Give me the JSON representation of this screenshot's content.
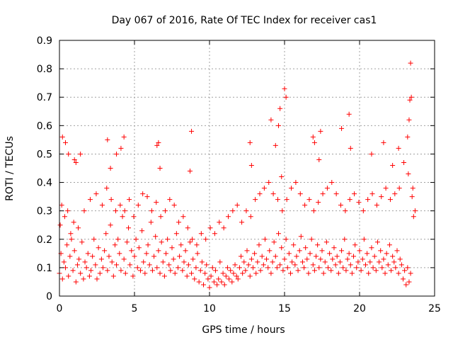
{
  "chart_data": {
    "type": "scatter",
    "title": "Day 067 of 2016, Rate Of TEC Index for receiver cas1",
    "xlabel": "GPS time / hours",
    "ylabel": "ROTI / TECUs",
    "xlim": [
      0,
      25
    ],
    "ylim": [
      0,
      0.9
    ],
    "xticks": [
      0,
      5,
      10,
      15,
      20,
      25
    ],
    "yticks": [
      0,
      0.1,
      0.2,
      0.3,
      0.4,
      0.5,
      0.6,
      0.7,
      0.8,
      0.9
    ],
    "xtick_labels": [
      "0",
      "5",
      "10",
      "15",
      "20",
      "25"
    ],
    "ytick_labels": [
      "0",
      "0.1",
      "0.2",
      "0.3",
      "0.4",
      "0.5",
      "0.6",
      "0.7",
      "0.8",
      "0.9"
    ],
    "grid": true,
    "marker": "+",
    "color": "#ff0000",
    "series": [
      {
        "name": "ROTI",
        "x": [
          0.0,
          0.1,
          0.2,
          0.3,
          0.4,
          0.5,
          0.6,
          0.7,
          0.8,
          0.9,
          1.0,
          1.1,
          1.2,
          1.3,
          1.4,
          1.5,
          1.6,
          1.7,
          1.8,
          1.9,
          2.0,
          2.1,
          2.2,
          2.3,
          2.4,
          2.5,
          2.6,
          2.7,
          2.8,
          2.9,
          3.0,
          3.1,
          3.2,
          3.3,
          3.4,
          3.5,
          3.6,
          3.7,
          3.8,
          3.9,
          4.0,
          4.1,
          4.2,
          4.3,
          4.4,
          4.5,
          4.6,
          4.7,
          4.8,
          4.9,
          5.0,
          5.1,
          5.2,
          5.3,
          5.4,
          5.5,
          5.6,
          5.7,
          5.8,
          5.9,
          6.0,
          6.1,
          6.2,
          6.3,
          6.4,
          6.5,
          6.6,
          6.7,
          6.8,
          6.9,
          7.0,
          7.1,
          7.2,
          7.3,
          7.4,
          7.5,
          7.6,
          7.7,
          7.8,
          7.9,
          8.0,
          8.1,
          8.2,
          8.3,
          8.4,
          8.5,
          8.6,
          8.7,
          8.8,
          8.9,
          9.0,
          9.1,
          9.2,
          9.3,
          9.4,
          9.5,
          9.6,
          9.7,
          9.8,
          9.9,
          10.0,
          10.1,
          10.2,
          10.3,
          10.4,
          10.5,
          10.6,
          10.7,
          10.8,
          10.9,
          11.0,
          11.1,
          11.2,
          11.3,
          11.4,
          11.5,
          11.6,
          11.7,
          11.8,
          11.9,
          12.0,
          12.1,
          12.2,
          12.3,
          12.4,
          12.5,
          12.6,
          12.7,
          12.8,
          12.9,
          13.0,
          13.1,
          13.2,
          13.3,
          13.4,
          13.5,
          13.6,
          13.7,
          13.8,
          13.9,
          14.0,
          14.1,
          14.2,
          14.3,
          14.4,
          14.5,
          14.6,
          14.7,
          14.8,
          14.9,
          15.0,
          15.1,
          15.2,
          15.3,
          15.4,
          15.5,
          15.6,
          15.7,
          15.8,
          15.9,
          16.0,
          16.1,
          16.2,
          16.3,
          16.4,
          16.5,
          16.6,
          16.7,
          16.8,
          16.9,
          17.0,
          17.1,
          17.2,
          17.3,
          17.4,
          17.5,
          17.6,
          17.7,
          17.8,
          17.9,
          18.0,
          18.1,
          18.2,
          18.3,
          18.4,
          18.5,
          18.6,
          18.7,
          18.8,
          18.9,
          19.0,
          19.1,
          19.2,
          19.3,
          19.4,
          19.5,
          19.6,
          19.7,
          19.8,
          19.9,
          20.0,
          20.1,
          20.2,
          20.3,
          20.4,
          20.5,
          20.6,
          20.7,
          20.8,
          20.9,
          21.0,
          21.1,
          21.2,
          21.3,
          21.4,
          21.5,
          21.6,
          21.7,
          21.8,
          21.9,
          22.0,
          22.1,
          22.2,
          22.3,
          22.4,
          22.5,
          22.6,
          22.7,
          22.8,
          22.9,
          23.0,
          23.1,
          23.2,
          23.3,
          23.4,
          23.5,
          23.6,
          23.7,
          0.05,
          0.15,
          0.35,
          0.55,
          0.75,
          0.95,
          1.25,
          1.65,
          2.05,
          2.45,
          2.85,
          3.15,
          3.45,
          3.75,
          4.05,
          4.35,
          4.65,
          4.95,
          5.25,
          5.55,
          5.85,
          6.15,
          6.45,
          6.75,
          7.05,
          7.35,
          7.65,
          7.95,
          8.25,
          8.55,
          8.85,
          9.15,
          9.45,
          9.75,
          10.05,
          10.35,
          10.65,
          10.95,
          11.25,
          11.55,
          11.85,
          12.15,
          12.45,
          12.75,
          13.05,
          13.35,
          13.65,
          13.95,
          14.25,
          14.55,
          14.85,
          15.15,
          15.45,
          15.75,
          16.05,
          16.35,
          16.65,
          16.95,
          17.25,
          17.55,
          17.85,
          18.15,
          18.45,
          18.75,
          19.05,
          19.35,
          19.65,
          19.95,
          20.25,
          20.55,
          20.85,
          21.15,
          21.45,
          21.75,
          22.05,
          22.35,
          22.65,
          22.95,
          23.25,
          23.55,
          0.2,
          0.4,
          0.6,
          1.0,
          1.1,
          1.4,
          3.2,
          3.4,
          3.8,
          4.1,
          4.3,
          6.5,
          6.6,
          6.7,
          8.7,
          8.8,
          12.7,
          12.8,
          14.1,
          14.4,
          14.6,
          14.7,
          14.8,
          15.0,
          15.1,
          16.9,
          17.0,
          17.3,
          17.4,
          18.8,
          19.3,
          19.4,
          20.8,
          21.6,
          22.2,
          22.6,
          23.2,
          23.3,
          23.35,
          23.4,
          23.45
        ],
        "y": [
          0.08,
          0.15,
          0.06,
          0.12,
          0.1,
          0.18,
          0.07,
          0.14,
          0.2,
          0.09,
          0.16,
          0.05,
          0.11,
          0.13,
          0.08,
          0.19,
          0.06,
          0.12,
          0.1,
          0.15,
          0.07,
          0.09,
          0.14,
          0.2,
          0.11,
          0.06,
          0.17,
          0.08,
          0.13,
          0.1,
          0.16,
          0.22,
          0.09,
          0.14,
          0.25,
          0.12,
          0.07,
          0.18,
          0.11,
          0.2,
          0.15,
          0.09,
          0.28,
          0.13,
          0.08,
          0.19,
          0.24,
          0.11,
          0.16,
          0.07,
          0.14,
          0.2,
          0.1,
          0.17,
          0.09,
          0.23,
          0.12,
          0.08,
          0.15,
          0.18,
          0.11,
          0.26,
          0.09,
          0.14,
          0.21,
          0.1,
          0.16,
          0.08,
          0.19,
          0.12,
          0.07,
          0.15,
          0.2,
          0.11,
          0.09,
          0.17,
          0.13,
          0.08,
          0.22,
          0.1,
          0.14,
          0.18,
          0.09,
          0.12,
          0.16,
          0.07,
          0.11,
          0.19,
          0.08,
          0.13,
          0.06,
          0.1,
          0.15,
          0.05,
          0.09,
          0.12,
          0.04,
          0.08,
          0.11,
          0.06,
          0.03,
          0.07,
          0.1,
          0.05,
          0.09,
          0.04,
          0.06,
          0.12,
          0.05,
          0.08,
          0.04,
          0.07,
          0.1,
          0.06,
          0.09,
          0.05,
          0.08,
          0.11,
          0.07,
          0.06,
          0.1,
          0.14,
          0.08,
          0.12,
          0.09,
          0.16,
          0.11,
          0.07,
          0.13,
          0.1,
          0.15,
          0.08,
          0.12,
          0.18,
          0.09,
          0.14,
          0.11,
          0.2,
          0.13,
          0.1,
          0.16,
          0.08,
          0.12,
          0.19,
          0.14,
          0.1,
          0.22,
          0.11,
          0.17,
          0.09,
          0.13,
          0.2,
          0.1,
          0.15,
          0.08,
          0.12,
          0.18,
          0.11,
          0.14,
          0.09,
          0.16,
          0.21,
          0.12,
          0.1,
          0.17,
          0.13,
          0.08,
          0.15,
          0.2,
          0.11,
          0.09,
          0.14,
          0.18,
          0.1,
          0.13,
          0.16,
          0.08,
          0.12,
          0.19,
          0.1,
          0.15,
          0.09,
          0.13,
          0.17,
          0.11,
          0.14,
          0.08,
          0.12,
          0.16,
          0.1,
          0.2,
          0.09,
          0.13,
          0.15,
          0.11,
          0.08,
          0.14,
          0.18,
          0.1,
          0.12,
          0.16,
          0.09,
          0.13,
          0.2,
          0.11,
          0.15,
          0.08,
          0.12,
          0.17,
          0.1,
          0.14,
          0.09,
          0.19,
          0.12,
          0.16,
          0.1,
          0.13,
          0.08,
          0.15,
          0.11,
          0.18,
          0.09,
          0.14,
          0.12,
          0.1,
          0.16,
          0.08,
          0.13,
          0.11,
          0.06,
          0.09,
          0.04,
          0.1,
          0.05,
          0.08,
          0.35,
          0.28,
          0.3,
          0.25,
          0.32,
          0.28,
          0.3,
          0.22,
          0.26,
          0.24,
          0.3,
          0.34,
          0.36,
          0.32,
          0.38,
          0.34,
          0.3,
          0.32,
          0.3,
          0.34,
          0.28,
          0.32,
          0.36,
          0.35,
          0.3,
          0.33,
          0.28,
          0.3,
          0.34,
          0.32,
          0.26,
          0.28,
          0.24,
          0.2,
          0.18,
          0.22,
          0.2,
          0.24,
          0.22,
          0.26,
          0.24,
          0.28,
          0.3,
          0.32,
          0.26,
          0.3,
          0.28,
          0.34,
          0.36,
          0.38,
          0.4,
          0.36,
          0.34,
          0.3,
          0.34,
          0.38,
          0.4,
          0.36,
          0.32,
          0.34,
          0.3,
          0.33,
          0.36,
          0.38,
          0.4,
          0.36,
          0.32,
          0.3,
          0.34,
          0.36,
          0.33,
          0.3,
          0.34,
          0.36,
          0.32,
          0.35,
          0.38,
          0.34,
          0.36,
          0.38,
          0.47,
          0.43,
          0.38,
          0.56,
          0.54,
          0.5,
          0.48,
          0.47,
          0.5,
          0.55,
          0.45,
          0.5,
          0.52,
          0.56,
          0.53,
          0.54,
          0.45,
          0.44,
          0.58,
          0.54,
          0.46,
          0.62,
          0.53,
          0.6,
          0.66,
          0.42,
          0.73,
          0.7,
          0.56,
          0.54,
          0.48,
          0.58,
          0.59,
          0.64,
          0.52,
          0.5,
          0.54,
          0.46,
          0.52,
          0.56,
          0.62,
          0.69,
          0.82,
          0.7
        ]
      }
    ]
  }
}
